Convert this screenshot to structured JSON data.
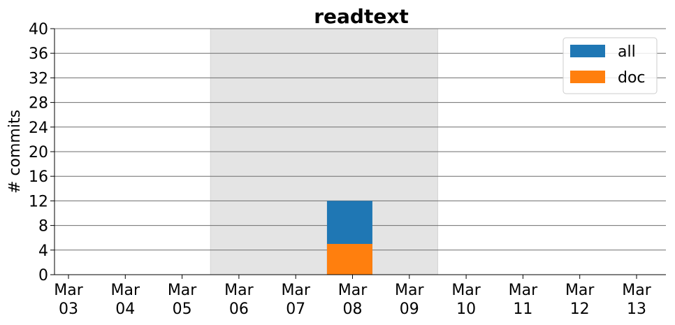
{
  "chart_data": {
    "type": "bar",
    "stacked": false,
    "title": "readtext",
    "xlabel": "",
    "ylabel": "# commits",
    "categories": [
      [
        "Mar",
        "03"
      ],
      [
        "Mar",
        "04"
      ],
      [
        "Mar",
        "05"
      ],
      [
        "Mar",
        "06"
      ],
      [
        "Mar",
        "07"
      ],
      [
        "Mar",
        "08"
      ],
      [
        "Mar",
        "09"
      ],
      [
        "Mar",
        "10"
      ],
      [
        "Mar",
        "11"
      ],
      [
        "Mar",
        "12"
      ],
      [
        "Mar",
        "13"
      ]
    ],
    "series": [
      {
        "name": "all",
        "color": "#1f77b4",
        "values": [
          0,
          0,
          0,
          0,
          0,
          12,
          0,
          0,
          0,
          0,
          0
        ]
      },
      {
        "name": "doc",
        "color": "#ff7f0e",
        "values": [
          0,
          0,
          0,
          0,
          0,
          5,
          0,
          0,
          0,
          0,
          0
        ]
      }
    ],
    "bar_date": [
      "Mar",
      "08"
    ],
    "highlight_span": {
      "from": "Mar 06",
      "to": "Mar 09",
      "color": "#e4e4e4"
    },
    "ylim": [
      0,
      40
    ],
    "yticks": [
      0,
      4,
      8,
      12,
      16,
      20,
      24,
      28,
      32,
      36,
      40
    ],
    "grid": "horizontal",
    "legend_position": "top-right"
  }
}
